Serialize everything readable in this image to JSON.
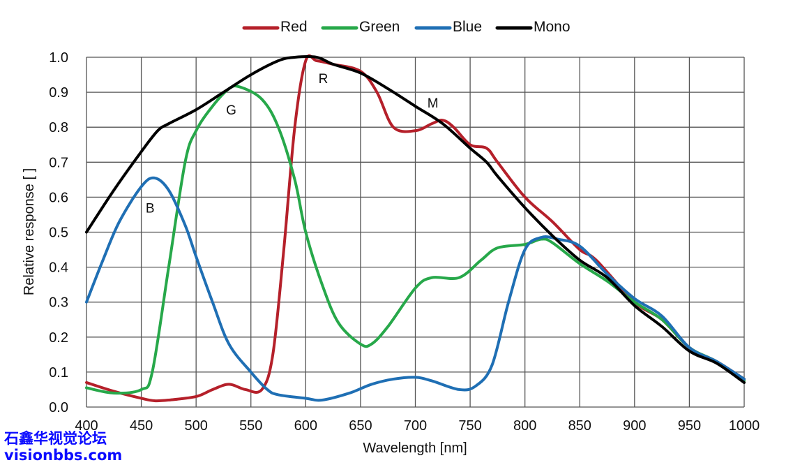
{
  "chart_data": {
    "type": "line",
    "title": "",
    "xlabel": "Wavelength [nm]",
    "ylabel": "Relative response [ ]",
    "xlim": [
      400,
      1000
    ],
    "ylim": [
      0,
      1.0
    ],
    "xticks": [
      400,
      450,
      500,
      550,
      600,
      650,
      700,
      750,
      800,
      850,
      900,
      950,
      1000
    ],
    "yticks": [
      "0.0",
      "0.1",
      "0.2",
      "0.3",
      "0.4",
      "0.5",
      "0.6",
      "0.7",
      "0.8",
      "0.9",
      "1.0"
    ],
    "grid": true,
    "legend_placement": "top-center",
    "series": [
      {
        "name": "Red",
        "color": "#b5202a",
        "x": [
          400,
          425,
          450,
          462,
          475,
          500,
          515,
          530,
          545,
          560,
          570,
          580,
          590,
          600,
          610,
          625,
          650,
          665,
          680,
          700,
          715,
          725,
          735,
          750,
          765,
          775,
          800,
          825,
          850,
          865,
          900,
          925,
          950,
          975,
          1000
        ],
        "y": [
          0.07,
          0.045,
          0.025,
          0.018,
          0.02,
          0.03,
          0.05,
          0.065,
          0.05,
          0.05,
          0.15,
          0.45,
          0.8,
          0.99,
          0.99,
          0.98,
          0.96,
          0.9,
          0.8,
          0.79,
          0.81,
          0.82,
          0.8,
          0.75,
          0.74,
          0.7,
          0.6,
          0.53,
          0.45,
          0.42,
          0.3,
          0.25,
          0.17,
          0.13,
          0.08
        ]
      },
      {
        "name": "Green",
        "color": "#27a84a",
        "x": [
          400,
          425,
          450,
          460,
          475,
          490,
          500,
          515,
          530,
          540,
          560,
          575,
          590,
          600,
          615,
          630,
          650,
          660,
          675,
          700,
          715,
          740,
          760,
          775,
          800,
          815,
          825,
          850,
          875,
          900,
          925,
          950,
          975,
          1000
        ],
        "y": [
          0.055,
          0.04,
          0.05,
          0.1,
          0.4,
          0.7,
          0.79,
          0.86,
          0.91,
          0.915,
          0.88,
          0.8,
          0.65,
          0.5,
          0.35,
          0.24,
          0.18,
          0.18,
          0.23,
          0.34,
          0.37,
          0.37,
          0.42,
          0.455,
          0.465,
          0.48,
          0.47,
          0.41,
          0.36,
          0.3,
          0.25,
          0.17,
          0.13,
          0.075
        ]
      },
      {
        "name": "Blue",
        "color": "#1f6fb4",
        "x": [
          400,
          415,
          430,
          450,
          462,
          475,
          490,
          500,
          515,
          530,
          550,
          565,
          575,
          600,
          615,
          640,
          660,
          680,
          700,
          715,
          740,
          755,
          770,
          785,
          800,
          815,
          830,
          850,
          875,
          900,
          925,
          950,
          975,
          1000
        ],
        "y": [
          0.3,
          0.42,
          0.53,
          0.63,
          0.655,
          0.62,
          0.52,
          0.43,
          0.3,
          0.18,
          0.1,
          0.05,
          0.035,
          0.025,
          0.02,
          0.04,
          0.065,
          0.08,
          0.085,
          0.075,
          0.05,
          0.06,
          0.12,
          0.3,
          0.45,
          0.485,
          0.48,
          0.46,
          0.38,
          0.31,
          0.26,
          0.17,
          0.13,
          0.08
        ]
      },
      {
        "name": "Mono",
        "color": "#000000",
        "x": [
          400,
          425,
          450,
          465,
          475,
          500,
          525,
          550,
          575,
          590,
          610,
          625,
          650,
          675,
          700,
          725,
          750,
          765,
          775,
          800,
          825,
          850,
          875,
          900,
          925,
          950,
          975,
          1000
        ],
        "y": [
          0.5,
          0.62,
          0.73,
          0.79,
          0.81,
          0.85,
          0.9,
          0.95,
          0.99,
          1.0,
          1.0,
          0.98,
          0.955,
          0.91,
          0.86,
          0.81,
          0.74,
          0.7,
          0.66,
          0.57,
          0.49,
          0.42,
          0.37,
          0.29,
          0.23,
          0.16,
          0.125,
          0.07
        ]
      }
    ],
    "annotations": [
      {
        "text": "R",
        "x": 616,
        "y": 0.94
      },
      {
        "text": "G",
        "x": 532,
        "y": 0.85
      },
      {
        "text": "B",
        "x": 458,
        "y": 0.57
      },
      {
        "text": "M",
        "x": 716,
        "y": 0.87
      }
    ]
  },
  "watermark": {
    "line1": "石鑫华视觉论坛",
    "line2": "visionbbs.com"
  }
}
